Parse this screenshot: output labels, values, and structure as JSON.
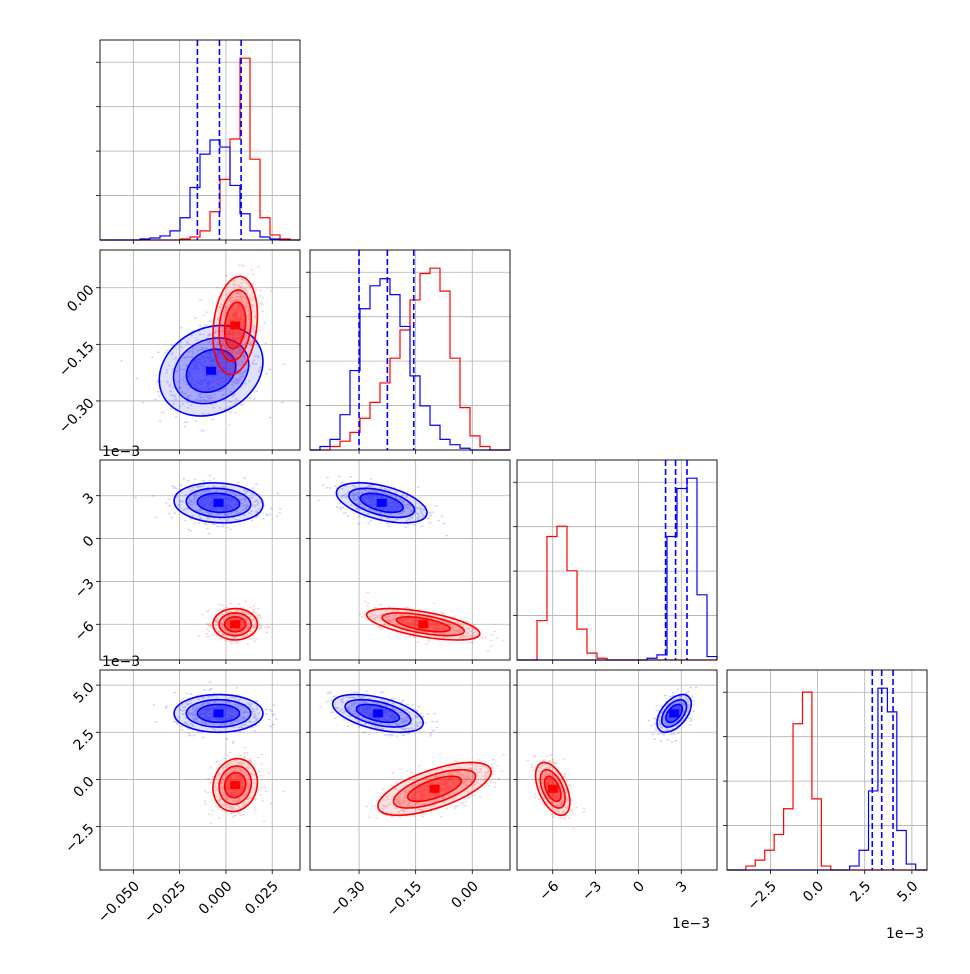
{
  "chart_data": {
    "type": "corner",
    "grid": true,
    "series": [
      {
        "name": "",
        "color": "#0000ff"
      },
      {
        "name": "",
        "color": "#ff0000"
      }
    ],
    "x_tick_labels": [
      [
        "−0.050",
        "−0.025",
        "0.000",
        "0.025"
      ],
      [
        "−0.30",
        "−0.15",
        "0.00"
      ],
      [
        "−6",
        "−3",
        "0",
        "3"
      ],
      [
        "−2.5",
        "0.0",
        "2.5",
        "5.0"
      ]
    ],
    "y_tick_labels": [
      [],
      [
        "0.00",
        "−0.15",
        "−0.30"
      ],
      [
        "3",
        "0",
        "−3",
        "−6"
      ],
      [
        "5.0",
        "2.5",
        "0.0",
        "−2.5"
      ]
    ],
    "offset_labels": {
      "row2_y": "1e−3",
      "row3_y": "1e−3",
      "col3_x": "1e−3",
      "col4_x": "1e−3"
    },
    "params": [
      {
        "xlim": [
          -0.068,
          0.04
        ],
        "blue_quantiles": [
          -0.0154,
          -0.0035,
          0.0082
        ]
      },
      {
        "xlim": [
          -0.43,
          0.1
        ],
        "blue_quantiles": [
          -0.3,
          -0.225,
          -0.155
        ]
      },
      {
        "xlim": [
          -0.0085,
          0.0055
        ],
        "blue_quantiles": [
          0.0019,
          0.0026,
          0.0034
        ]
      },
      {
        "xlim": [
          -0.0048,
          0.0058
        ],
        "blue_quantiles": [
          0.0029,
          0.0034,
          0.004
        ]
      }
    ],
    "ylims": [
      null,
      [
        -0.43,
        0.1
      ],
      [
        -0.0085,
        0.0055
      ],
      [
        -0.0048,
        0.0058
      ]
    ],
    "histograms": [
      {
        "edges": [
          -0.068,
          -0.0626,
          -0.0572,
          -0.0518,
          -0.0464,
          -0.041,
          -0.0356,
          -0.0302,
          -0.0248,
          -0.0194,
          -0.014,
          -0.0086,
          -0.0032,
          0.0022,
          0.0076,
          0.013,
          0.0184,
          0.0238,
          0.0292,
          0.0346,
          0.04
        ],
        "blue": [
          0,
          0,
          0,
          0,
          1,
          2,
          4,
          9,
          22,
          52,
          85,
          99,
          92,
          54,
          26,
          9,
          3,
          1,
          0,
          0
        ],
        "red": [
          0,
          0,
          0,
          0,
          0,
          0,
          0,
          0,
          1,
          3,
          9,
          28,
          60,
          100,
          180,
          80,
          22,
          5,
          1,
          0
        ]
      },
      {
        "edges": [
          -0.43,
          -0.4035,
          -0.377,
          -0.3505,
          -0.324,
          -0.2975,
          -0.271,
          -0.2445,
          -0.218,
          -0.1915,
          -0.165,
          -0.1385,
          -0.112,
          -0.0855,
          -0.059,
          -0.0325,
          -0.006,
          0.0205,
          0.047,
          0.0735,
          0.1
        ],
        "blue": [
          0,
          2,
          6,
          20,
          45,
          80,
          93,
          97,
          88,
          70,
          42,
          25,
          14,
          6,
          3,
          1,
          0,
          0,
          0,
          0
        ],
        "red": [
          0,
          0,
          2,
          5,
          10,
          18,
          27,
          38,
          52,
          68,
          85,
          100,
          103,
          90,
          52,
          24,
          8,
          2,
          0,
          0
        ]
      },
      {
        "edges": [
          -0.0085,
          -0.0078,
          -0.0071,
          -0.0064,
          -0.0057,
          -0.005,
          -0.0043,
          -0.0036,
          -0.0029,
          -0.0022,
          -0.0015,
          -0.0008,
          -0.0001,
          0.0006,
          0.0013,
          0.002,
          0.0027,
          0.0034,
          0.0041,
          0.0048,
          0.0055
        ],
        "blue": [
          0,
          0,
          0,
          0,
          0,
          0,
          0,
          0,
          0,
          0,
          0,
          0,
          0,
          1,
          3,
          72,
          100,
          106,
          38,
          2
        ],
        "red": [
          0,
          0,
          23,
          72,
          78,
          52,
          18,
          4,
          1,
          0,
          0,
          0,
          0,
          0,
          0,
          0,
          0,
          0,
          0,
          0
        ]
      },
      {
        "edges": [
          -0.0048,
          -0.0043,
          -0.0038,
          -0.0033,
          -0.0028,
          -0.0023,
          -0.0018,
          -0.0013,
          -0.0008,
          -0.0003,
          0.0002,
          0.0007,
          0.0012,
          0.0017,
          0.0022,
          0.0027,
          0.0032,
          0.0037,
          0.0042,
          0.0047,
          0.0052,
          0.0058
        ],
        "blue": [
          0,
          0,
          0,
          0,
          0,
          0,
          0,
          0,
          0,
          0,
          0,
          0,
          0,
          2,
          10,
          40,
          92,
          80,
          20,
          3,
          0
        ],
        "red": [
          0,
          0,
          2,
          5,
          10,
          18,
          31,
          74,
          90,
          36,
          2,
          0,
          0,
          0,
          0,
          0,
          0,
          0,
          0,
          0,
          0
        ]
      }
    ],
    "scatter_panels": [
      {
        "row": 1,
        "col": 0,
        "blue": {
          "center": [
            -0.008,
            -0.22
          ],
          "sd": [
            0.014,
            0.06
          ],
          "rho": 0.2
        },
        "red": {
          "center": [
            0.005,
            -0.1
          ],
          "sd": [
            0.006,
            0.065
          ],
          "rho": 0.2
        }
      },
      {
        "row": 2,
        "col": 0,
        "blue": {
          "center": [
            -0.004,
            0.0025
          ],
          "sd": [
            0.012,
            0.0007
          ],
          "rho": -0.1
        },
        "red": {
          "center": [
            0.005,
            -0.006
          ],
          "sd": [
            0.006,
            0.00055
          ],
          "rho": 0.0
        }
      },
      {
        "row": 2,
        "col": 1,
        "blue": {
          "center": [
            -0.24,
            0.0025
          ],
          "sd": [
            0.06,
            0.0007
          ],
          "rho": -0.5
        },
        "red": {
          "center": [
            -0.13,
            -0.006
          ],
          "sd": [
            0.075,
            0.00055
          ],
          "rho": -0.6
        }
      },
      {
        "row": 3,
        "col": 0,
        "blue": {
          "center": [
            -0.004,
            0.0035
          ],
          "sd": [
            0.012,
            0.0005
          ],
          "rho": 0.0
        },
        "red": {
          "center": [
            0.005,
            -0.0003
          ],
          "sd": [
            0.006,
            0.0007
          ],
          "rho": 0.1
        }
      },
      {
        "row": 3,
        "col": 1,
        "blue": {
          "center": [
            -0.25,
            0.0035
          ],
          "sd": [
            0.06,
            0.0005
          ],
          "rho": -0.5
        },
        "red": {
          "center": [
            -0.1,
            -0.0005
          ],
          "sd": [
            0.075,
            0.0007
          ],
          "rho": 0.65
        }
      },
      {
        "row": 3,
        "col": 2,
        "blue": {
          "center": [
            0.0025,
            0.0035
          ],
          "sd": [
            0.0006,
            0.0005
          ],
          "rho": 0.5
        },
        "red": {
          "center": [
            -0.006,
            -0.0005
          ],
          "sd": [
            0.0006,
            0.0007
          ],
          "rho": -0.5
        }
      }
    ]
  }
}
